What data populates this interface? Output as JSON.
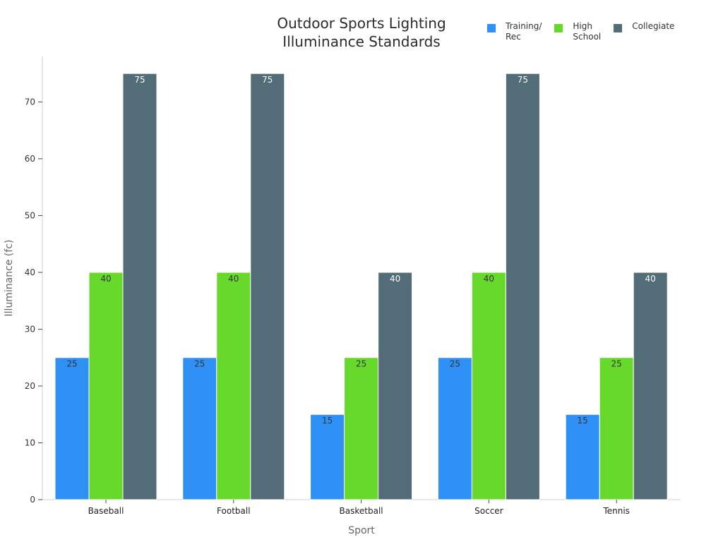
{
  "chart_data": {
    "type": "bar",
    "title_lines": [
      "Outdoor Sports Lighting",
      "Illuminance Standards"
    ],
    "xlabel": "Sport",
    "ylabel": "Illuminance (fc)",
    "categories": [
      "Baseball",
      "Football",
      "Basketball",
      "Soccer",
      "Tennis"
    ],
    "series": [
      {
        "name": "Training/\nRec",
        "color": "#2f91f5",
        "values": [
          25,
          25,
          15,
          25,
          15
        ]
      },
      {
        "name": "High\nSchool",
        "color": "#66d92a",
        "values": [
          40,
          40,
          25,
          40,
          25
        ]
      },
      {
        "name": "Collegiate",
        "color": "#526d77",
        "values": [
          75,
          75,
          40,
          75,
          40
        ]
      }
    ],
    "ylim": [
      0,
      78
    ],
    "yticks": [
      0,
      10,
      20,
      30,
      40,
      50,
      60,
      70
    ],
    "grid": false,
    "legend_position": "top-right"
  }
}
